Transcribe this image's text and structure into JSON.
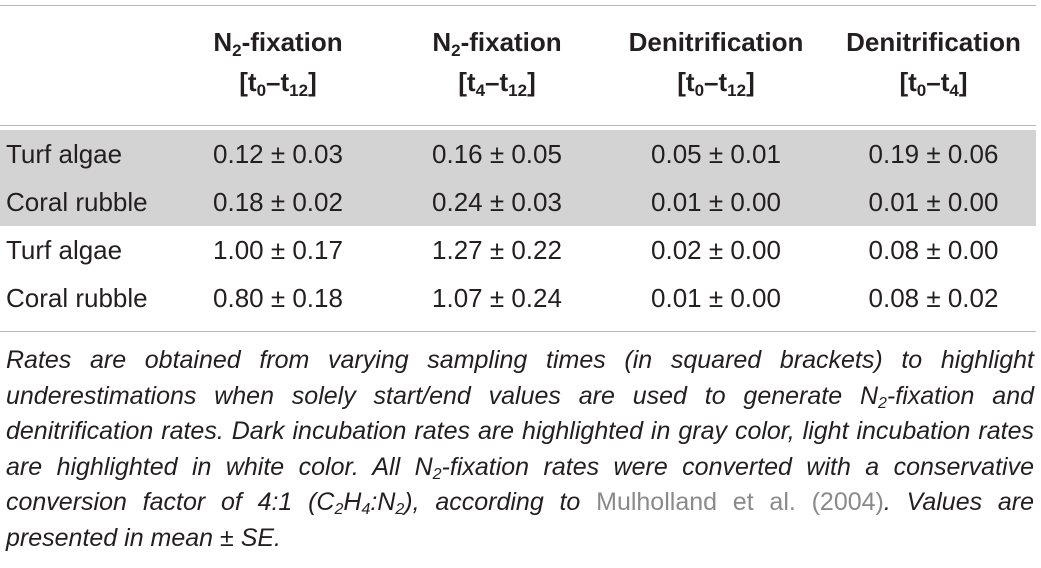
{
  "table": {
    "headers": [
      {
        "name": "N",
        "sub": "2",
        "rest": "-fixation",
        "range_a": "[t",
        "sa": "0",
        "dash": "–t",
        "sb": "12",
        "close": "]"
      },
      {
        "name": "N",
        "sub": "2",
        "rest": "-fixation",
        "range_a": "[t",
        "sa": "4",
        "dash": "–t",
        "sb": "12",
        "close": "]"
      },
      {
        "name": "Denitrification",
        "sub": "",
        "rest": "",
        "range_a": "[t",
        "sa": "0",
        "dash": "–t",
        "sb": "12",
        "close": "]"
      },
      {
        "name": "Denitrification",
        "sub": "",
        "rest": "",
        "range_a": "[t",
        "sa": "0",
        "dash": "–t",
        "sb": "4",
        "close": "]"
      }
    ],
    "rows": [
      {
        "label": "Turf algae",
        "shaded": true,
        "values": [
          "0.12 ± 0.03",
          "0.16 ± 0.05",
          "0.05 ± 0.01",
          "0.19 ± 0.06"
        ]
      },
      {
        "label": "Coral rubble",
        "shaded": true,
        "values": [
          "0.18 ± 0.02",
          "0.24 ± 0.03",
          "0.01 ± 0.00",
          "0.01 ± 0.00"
        ]
      },
      {
        "label": "Turf algae",
        "shaded": false,
        "values": [
          "1.00 ± 0.17",
          "1.27 ± 0.22",
          "0.02 ± 0.00",
          "0.08 ± 0.00"
        ]
      },
      {
        "label": "Coral rubble",
        "shaded": false,
        "values": [
          "0.80 ± 0.18",
          "1.07 ± 0.24",
          "0.01 ± 0.00",
          "0.08 ± 0.02"
        ]
      }
    ]
  },
  "caption": {
    "p1": "Rates are obtained from varying sampling times (in squared brackets) to highlight underestimations when solely start/end values are used to generate N",
    "sub1": "2",
    "p2": "-fixation and denitrification rates. Dark incubation rates are highlighted in gray color, light incubation rates are highlighted in white color. All N",
    "sub2": "2",
    "p3": "-fixation rates were converted with a conservative conversion factor of 4:1 (C",
    "sub3": "2",
    "p4": "H",
    "sub4": "4",
    "p5": ":N",
    "sub5": "2",
    "p6": "), according to ",
    "citation": "Mulholland et al. (2004)",
    "p7": ". Values are presented in mean ± SE."
  }
}
